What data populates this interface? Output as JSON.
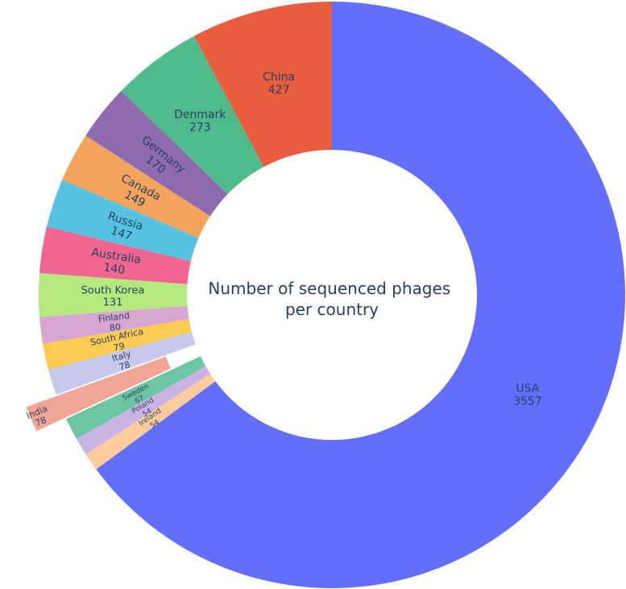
{
  "chart_data": {
    "type": "pie",
    "hole": true,
    "center_text": [
      "Number of sequenced phages",
      "per country"
    ],
    "slices": [
      {
        "label": "USA",
        "value": 3557,
        "color": "#636efa"
      },
      {
        "label": "Ireland",
        "value": 54,
        "color": "#fecb9c"
      },
      {
        "label": "Poland",
        "value": 54,
        "color": "#c9b4e4"
      },
      {
        "label": "Sweden",
        "value": 67,
        "color": "#6cc6a4"
      },
      {
        "label": "India",
        "value": 78,
        "color": "#f0a595",
        "pulled": true
      },
      {
        "label": "Italy",
        "value": 78,
        "color": "#c5c9ea"
      },
      {
        "label": "South Africa",
        "value": 79,
        "color": "#fecb52"
      },
      {
        "label": "Finland",
        "value": 80,
        "color": "#d6a5d0"
      },
      {
        "label": "South Korea",
        "value": 131,
        "color": "#b6e880"
      },
      {
        "label": "Australia",
        "value": 140,
        "color": "#ef6691"
      },
      {
        "label": "Russia",
        "value": 147,
        "color": "#55c2e2"
      },
      {
        "label": "Canada",
        "value": 149,
        "color": "#f3a45c"
      },
      {
        "label": "Germany",
        "value": 170,
        "color": "#8e6aaf"
      },
      {
        "label": "Denmark",
        "value": 273,
        "color": "#4fbb8b"
      },
      {
        "label": "China",
        "value": 427,
        "color": "#e85d3d"
      }
    ]
  }
}
